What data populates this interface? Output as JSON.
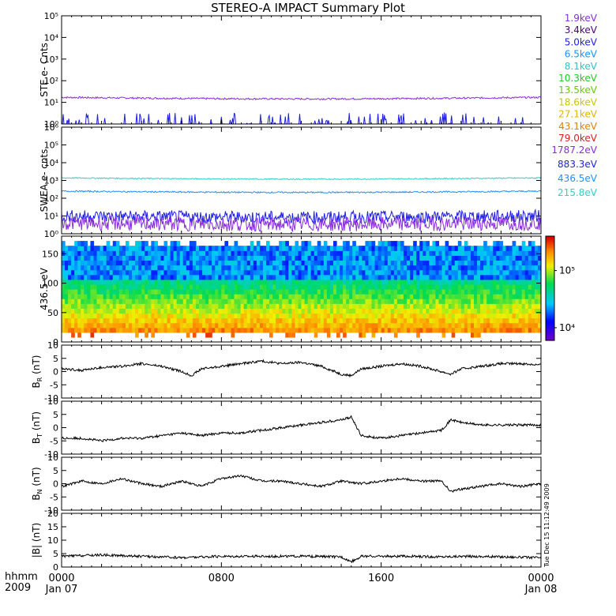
{
  "title": "STEREO-A IMPACT Summary Plot",
  "timestamp_text": "Tue Dec 15 11:12:49 2009",
  "time_axis": {
    "label_line1": "hhmm",
    "label_line2": "2009",
    "ticks": [
      {
        "hhmm": "0000",
        "date": "Jan 07",
        "hours": 0
      },
      {
        "hhmm": "0800",
        "date": "",
        "hours": 8
      },
      {
        "hhmm": "1600",
        "date": "",
        "hours": 16
      },
      {
        "hhmm": "0000",
        "date": "Jan 08",
        "hours": 24
      }
    ],
    "range_hours": [
      0,
      24
    ]
  },
  "legend_ste": [
    {
      "label": "1.9keV",
      "color": "#8a2be2"
    },
    {
      "label": "3.4keV",
      "color": "#4b0082"
    },
    {
      "label": "5.0keV",
      "color": "#1e1ee6"
    },
    {
      "label": "6.5keV",
      "color": "#1e90ff"
    },
    {
      "label": "8.1keV",
      "color": "#2ec4c4"
    },
    {
      "label": "10.3keV",
      "color": "#22cc22"
    },
    {
      "label": "13.5keV",
      "color": "#66cc00"
    },
    {
      "label": "18.6keV",
      "color": "#c8c800"
    },
    {
      "label": "27.1keV",
      "color": "#e6b400"
    },
    {
      "label": "43.1keV",
      "color": "#e67e00"
    },
    {
      "label": "79.0keV",
      "color": "#d42020"
    }
  ],
  "legend_swea": [
    {
      "label": "1787.2eV",
      "color": "#8a2be2"
    },
    {
      "label": "883.3eV",
      "color": "#1e1ee6"
    },
    {
      "label": "436.5eV",
      "color": "#1e90ff"
    },
    {
      "label": "215.8eV",
      "color": "#2ed0c8"
    }
  ],
  "chart_data": [
    {
      "type": "line",
      "ylabel": "STE e- Cnts",
      "yscale": "log",
      "ylim": [
        1,
        100000
      ],
      "yticks": [
        "10⁰",
        "10¹",
        "10²",
        "10³",
        "10⁴",
        "10⁵"
      ],
      "series": [
        {
          "name": "1.9keV",
          "level": 17,
          "noise": 0.04
        },
        {
          "name": "5.0keV",
          "level": 1,
          "spiky": true
        }
      ]
    },
    {
      "type": "line",
      "ylabel": "SWEA e- cnts",
      "yscale": "log",
      "ylim": [
        1,
        1000000
      ],
      "yticks": [
        "10⁰",
        "10¹",
        "10²",
        "10³",
        "10⁴",
        "10⁵",
        "10⁶"
      ],
      "series": [
        {
          "name": "215.8eV",
          "level": 1400,
          "noise": 0.03
        },
        {
          "name": "436.5eV",
          "level": 250,
          "noise": 0.04
        },
        {
          "name": "883.3eV",
          "level": 10,
          "noise": 0.35
        },
        {
          "name": "1787.2eV",
          "level": 4,
          "noise": 0.4
        }
      ]
    },
    {
      "type": "heatmap",
      "ylabel": "436.5 eV",
      "ylim": [
        0,
        180
      ],
      "yticks": [
        "0",
        "50",
        "100",
        "150"
      ],
      "colorbar_ticks": [
        "10⁴",
        "10⁵"
      ],
      "colorbar_range": [
        6000,
        400000
      ]
    },
    {
      "type": "line",
      "ylabel_main": "B",
      "ylabel_sub": "R",
      "ylabel_unit": "(nT)",
      "ylim": [
        -10,
        10
      ],
      "yticks": [
        "-10",
        "-5",
        "0",
        "5",
        "10"
      ],
      "points": [
        [
          0,
          1
        ],
        [
          1,
          0.5
        ],
        [
          2,
          1.5
        ],
        [
          3,
          2
        ],
        [
          4,
          3
        ],
        [
          5,
          2
        ],
        [
          6,
          0
        ],
        [
          6.5,
          -1.5
        ],
        [
          7,
          1
        ],
        [
          8,
          2
        ],
        [
          9,
          3
        ],
        [
          10,
          4
        ],
        [
          11,
          3
        ],
        [
          12,
          3.5
        ],
        [
          13,
          2
        ],
        [
          14,
          -1
        ],
        [
          14.5,
          -1.5
        ],
        [
          15,
          1
        ],
        [
          16,
          2
        ],
        [
          17,
          3
        ],
        [
          18,
          2
        ],
        [
          19,
          0
        ],
        [
          19.5,
          -1
        ],
        [
          20,
          1
        ],
        [
          21,
          2
        ],
        [
          22,
          3
        ],
        [
          23,
          3
        ],
        [
          24,
          2.5
        ]
      ]
    },
    {
      "type": "line",
      "ylabel_main": "B",
      "ylabel_sub": "T",
      "ylabel_unit": "(nT)",
      "ylim": [
        -10,
        10
      ],
      "yticks": [
        "-10",
        "-5",
        "0",
        "5",
        "10"
      ],
      "points": [
        [
          0,
          -4
        ],
        [
          1,
          -4
        ],
        [
          2,
          -5
        ],
        [
          3,
          -4
        ],
        [
          4,
          -4
        ],
        [
          5,
          -3
        ],
        [
          6,
          -2
        ],
        [
          7,
          -3
        ],
        [
          8,
          -2
        ],
        [
          9,
          -2
        ],
        [
          10,
          -1
        ],
        [
          11,
          0
        ],
        [
          12,
          1
        ],
        [
          13,
          2
        ],
        [
          14,
          3
        ],
        [
          14.5,
          4
        ],
        [
          15,
          -3
        ],
        [
          16,
          -4
        ],
        [
          17,
          -3
        ],
        [
          18,
          -2
        ],
        [
          19,
          -1
        ],
        [
          19.5,
          3
        ],
        [
          20,
          2
        ],
        [
          21,
          1
        ],
        [
          22,
          1
        ],
        [
          23,
          1
        ],
        [
          24,
          1
        ]
      ]
    },
    {
      "type": "line",
      "ylabel_main": "B",
      "ylabel_sub": "N",
      "ylabel_unit": "(nT)",
      "ylim": [
        -10,
        10
      ],
      "yticks": [
        "-10",
        "-5",
        "0",
        "5",
        "10"
      ],
      "points": [
        [
          0,
          -1
        ],
        [
          1,
          1
        ],
        [
          2,
          0
        ],
        [
          3,
          2
        ],
        [
          4,
          0
        ],
        [
          5,
          -1
        ],
        [
          6,
          1
        ],
        [
          7,
          -1
        ],
        [
          8,
          2
        ],
        [
          9,
          3
        ],
        [
          10,
          1
        ],
        [
          11,
          1
        ],
        [
          12,
          0
        ],
        [
          13,
          -1
        ],
        [
          14,
          1
        ],
        [
          15,
          0
        ],
        [
          16,
          1
        ],
        [
          17,
          2
        ],
        [
          18,
          1
        ],
        [
          19,
          1
        ],
        [
          19.5,
          -3
        ],
        [
          20,
          -2
        ],
        [
          21,
          -1
        ],
        [
          22,
          0
        ],
        [
          23,
          -1
        ],
        [
          24,
          0
        ]
      ]
    },
    {
      "type": "line",
      "ylabel_main": "|B|",
      "ylabel_sub": "",
      "ylabel_unit": "(nT)",
      "ylim": [
        0,
        20
      ],
      "yticks": [
        "0",
        "5",
        "10",
        "15",
        "20"
      ],
      "points": [
        [
          0,
          4
        ],
        [
          2,
          4.5
        ],
        [
          4,
          4
        ],
        [
          6,
          3.5
        ],
        [
          8,
          4
        ],
        [
          10,
          4
        ],
        [
          12,
          4
        ],
        [
          14,
          3.8
        ],
        [
          14.5,
          2
        ],
        [
          15,
          4
        ],
        [
          17,
          4
        ],
        [
          19,
          3.8
        ],
        [
          20,
          4
        ],
        [
          22,
          3.8
        ],
        [
          24,
          3.5
        ]
      ]
    }
  ]
}
